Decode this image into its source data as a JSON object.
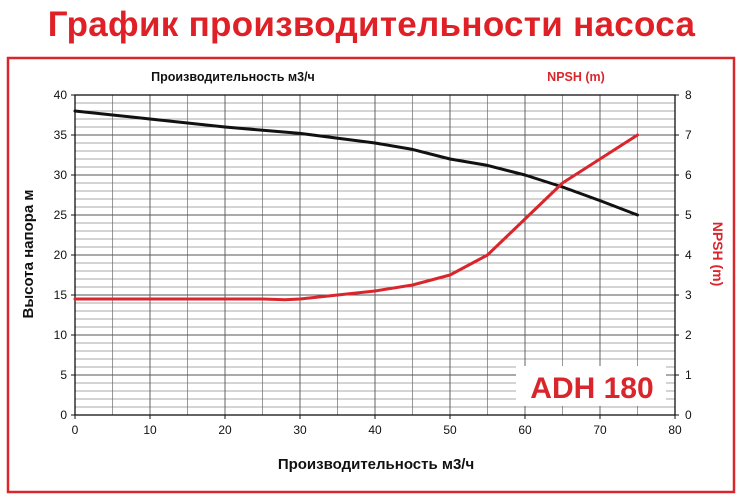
{
  "page": {
    "title": "График производительности насоса"
  },
  "colors": {
    "frame": "#d9262c",
    "head_curve": "#111111",
    "npsh_curve": "#d9262c",
    "title": "#e02027",
    "model": "#d9262c"
  },
  "chart_data": {
    "type": "line",
    "title": "График производительности насоса",
    "model_label": "ADH 180",
    "top_left_label": "Производительность м3/ч",
    "top_right_label": "NPSH (m)",
    "xlabel": "Производительность м3/ч",
    "ylabel_left": "Высота напора м",
    "ylabel_right": "NPSH (m)",
    "xlim": [
      0,
      80
    ],
    "ylim_left": [
      0,
      40
    ],
    "ylim_right": [
      0,
      8
    ],
    "x_ticks": [
      "0",
      "10",
      "20",
      "30",
      "40",
      "50",
      "60",
      "70",
      "80"
    ],
    "y_left_ticks": [
      "0",
      "5",
      "10",
      "15",
      "20",
      "25",
      "30",
      "35",
      "40"
    ],
    "y_right_ticks": [
      "0",
      "1",
      "2",
      "3",
      "4",
      "5",
      "6",
      "7",
      "8"
    ],
    "grid": true,
    "series": [
      {
        "axis": "left",
        "x": [
          0,
          10,
          20,
          30,
          40,
          45,
          50,
          55,
          60,
          65,
          70,
          75
        ],
        "y": [
          38,
          37,
          36,
          35.2,
          34,
          33.2,
          32,
          31.2,
          30,
          28.5,
          26.8,
          25
        ]
      },
      {
        "axis": "right",
        "x": [
          0,
          10,
          20,
          25,
          28,
          30,
          35,
          40,
          45,
          50,
          55,
          60,
          65,
          70,
          75
        ],
        "y": [
          2.9,
          2.9,
          2.9,
          2.9,
          2.88,
          2.9,
          3.0,
          3.1,
          3.25,
          3.5,
          4.0,
          4.9,
          5.8,
          6.4,
          7.0
        ]
      }
    ]
  }
}
